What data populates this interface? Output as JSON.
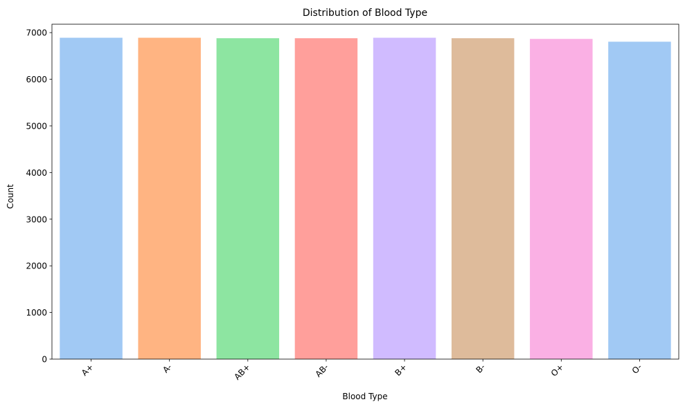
{
  "chart_data": {
    "type": "bar",
    "title": "Distribution of Blood Type",
    "xlabel": "Blood Type",
    "ylabel": "Count",
    "categories": [
      "A+",
      "A-",
      "AB+",
      "AB-",
      "B+",
      "B-",
      "O+",
      "O-"
    ],
    "values": [
      6890,
      6890,
      6880,
      6880,
      6890,
      6880,
      6865,
      6805
    ],
    "colors": [
      "#a1c9f4",
      "#ffb482",
      "#8de5a1",
      "#ff9f9b",
      "#d0bbff",
      "#debb9b",
      "#fab0e4",
      "#a1c9f4"
    ],
    "ylim": [
      0,
      7180
    ],
    "yticks": [
      0,
      1000,
      2000,
      3000,
      4000,
      5000,
      6000,
      7000
    ],
    "grid": false,
    "legend": "none",
    "xtick_rotation": 45
  }
}
